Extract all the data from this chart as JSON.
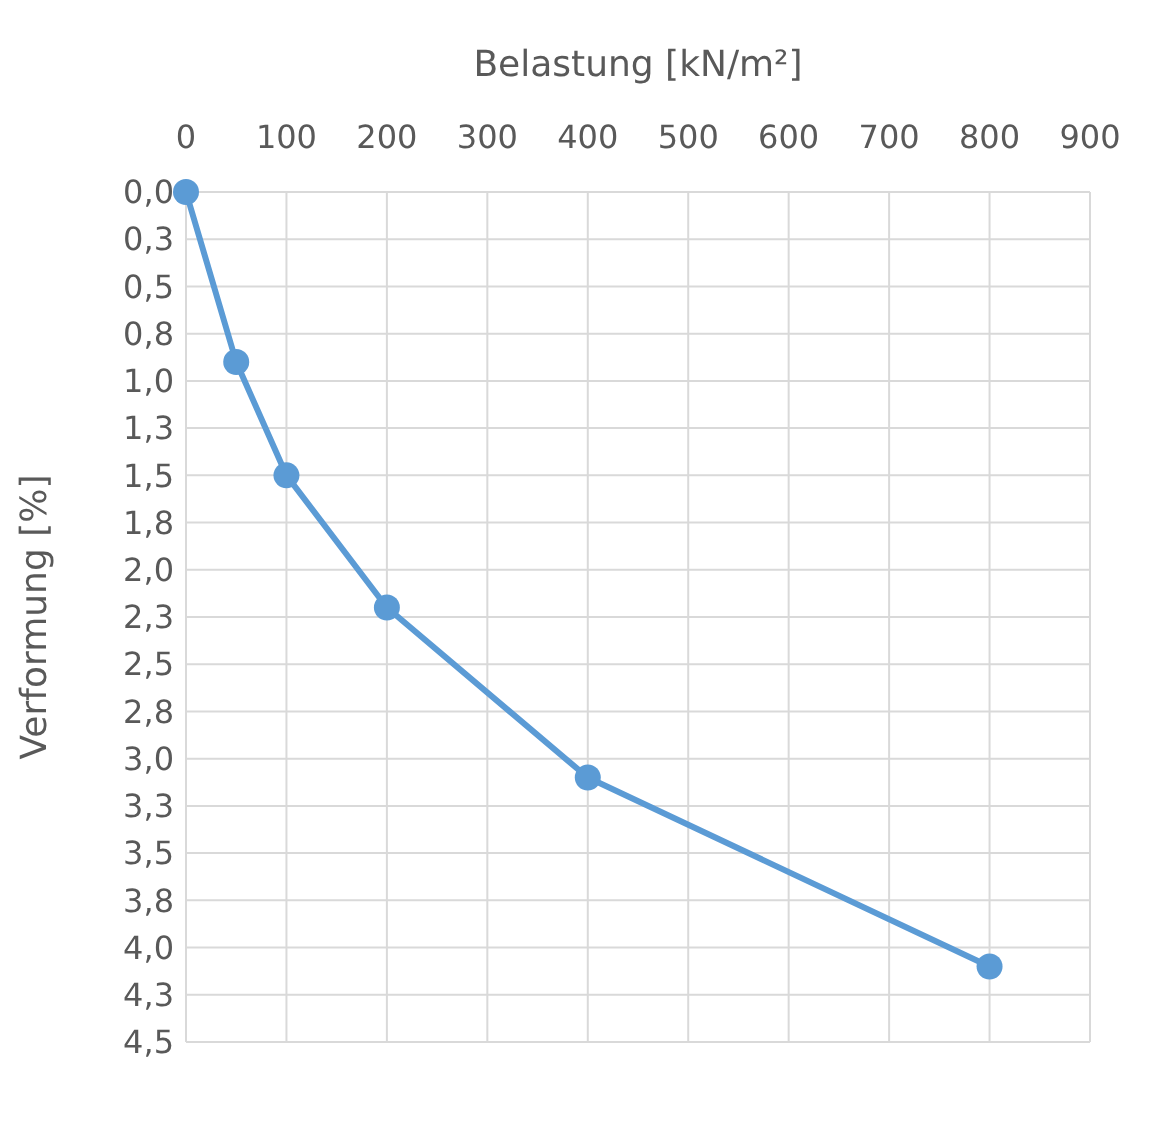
{
  "chart_data": {
    "type": "line",
    "xlabel": "Belastung [kN/m²]",
    "ylabel": "Verformung [%]",
    "x": [
      0,
      50,
      100,
      200,
      400,
      800
    ],
    "series": [
      {
        "color": "#5b9bd5",
        "values": [
          0,
          0.9,
          1.5,
          2.2,
          3.1,
          4.1
        ]
      }
    ],
    "xlim": [
      0,
      900
    ],
    "xticks": [
      0,
      100,
      200,
      300,
      400,
      500,
      600,
      700,
      800,
      900
    ],
    "ylim": [
      4.5,
      0
    ],
    "yticks": [
      {
        "value": 0,
        "label": "0,0"
      },
      {
        "value": 0.25,
        "label": "0,3"
      },
      {
        "value": 0.5,
        "label": "0,5"
      },
      {
        "value": 0.75,
        "label": "0,8"
      },
      {
        "value": 1,
        "label": "1,0"
      },
      {
        "value": 1.25,
        "label": "1,3"
      },
      {
        "value": 1.5,
        "label": "1,5"
      },
      {
        "value": 1.75,
        "label": "1,8"
      },
      {
        "value": 2,
        "label": "2,0"
      },
      {
        "value": 2.25,
        "label": "2,3"
      },
      {
        "value": 2.5,
        "label": "2,5"
      },
      {
        "value": 2.75,
        "label": "2,8"
      },
      {
        "value": 3,
        "label": "3,0"
      },
      {
        "value": 3.25,
        "label": "3,3"
      },
      {
        "value": 3.5,
        "label": "3,5"
      },
      {
        "value": 3.75,
        "label": "3,8"
      },
      {
        "value": 4,
        "label": "4,0"
      },
      {
        "value": 4.25,
        "label": "4,3"
      },
      {
        "value": 4.5,
        "label": "4,5"
      }
    ],
    "grid": true,
    "marker": "circle",
    "line_style": "solid"
  }
}
